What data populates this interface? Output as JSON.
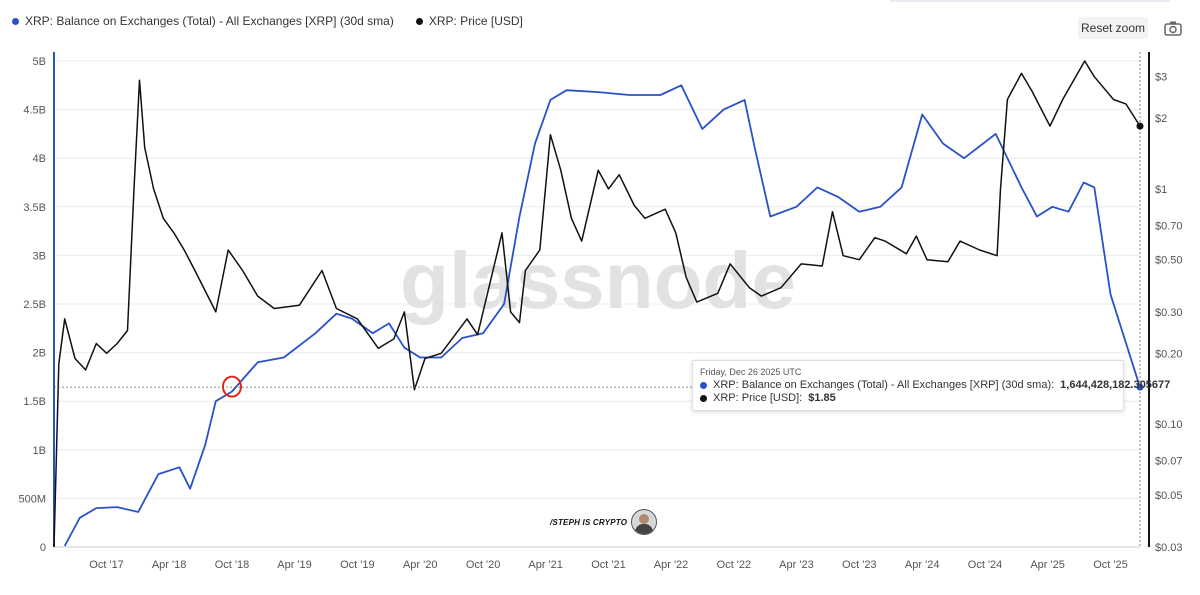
{
  "legend": {
    "balance_label": "XRP: Balance on Exchanges (Total) - All Exchanges [XRP] (30d sma)",
    "price_label": "XRP: Price [USD]"
  },
  "colors": {
    "balance": "#2952c8",
    "price": "#111111",
    "highlight_circle": "#e0261b",
    "watermark": "#e2e2e2"
  },
  "toolbar": {
    "reset_zoom_label": "Reset zoom",
    "camera_icon": "camera-icon"
  },
  "watermark": "glassnode",
  "credit": {
    "text": "/STEPH IS CRYPTO"
  },
  "tooltip": {
    "date": "Friday, Dec 26 2025 UTC",
    "balance_label": "XRP: Balance on Exchanges (Total) - All Exchanges [XRP] (30d sma):",
    "balance_value": "1,644,428,182.305677",
    "price_label": "XRP: Price [USD]:",
    "price_value": "$1.85"
  },
  "chart_data": {
    "type": "line",
    "x_axis": {
      "type": "date",
      "tick_labels": [
        "Oct '17",
        "Apr '18",
        "Oct '18",
        "Apr '19",
        "Oct '19",
        "Apr '20",
        "Oct '20",
        "Apr '21",
        "Oct '21",
        "Apr '22",
        "Oct '22",
        "Apr '23",
        "Oct '23",
        "Apr '24",
        "Oct '24",
        "Apr '25",
        "Oct '25"
      ],
      "range": [
        "2017-05-01",
        "2025-12-26"
      ]
    },
    "y_axis_left": {
      "series": "XRP: Balance on Exchanges (Total) - All Exchanges [XRP] (30d sma)",
      "tick_labels": [
        "0",
        "500M",
        "1B",
        "1.5B",
        "2B",
        "2.5B",
        "3B",
        "3.5B",
        "4B",
        "4.5B",
        "5B"
      ],
      "range": [
        0,
        5000000000
      ]
    },
    "y_axis_right": {
      "series": "XRP: Price [USD]",
      "scale": "log",
      "tick_labels": [
        "$0.03",
        "$0.05",
        "$0.07",
        "$0.10",
        "$0.20",
        "$0.30",
        "$0.50",
        "$0.70",
        "$1",
        "$2",
        "$3"
      ],
      "range": [
        0.03,
        3.5
      ]
    },
    "grid": {
      "horizontal": true,
      "vertical": false
    },
    "legend_position": "top-left",
    "series": [
      {
        "name": "XRP: Balance on Exchanges (Total) - All Exchanges [XRP] (30d sma)",
        "axis": "left",
        "points": [
          [
            "2017-06-01",
            10000000
          ],
          [
            "2017-07-15",
            300000000
          ],
          [
            "2017-09-01",
            400000000
          ],
          [
            "2017-11-01",
            410000000
          ],
          [
            "2018-01-01",
            360000000
          ],
          [
            "2018-03-01",
            750000000
          ],
          [
            "2018-05-01",
            820000000
          ],
          [
            "2018-06-01",
            600000000
          ],
          [
            "2018-07-15",
            1050000000
          ],
          [
            "2018-08-15",
            1500000000
          ],
          [
            "2018-10-01",
            1600000000
          ],
          [
            "2018-11-15",
            1780000000
          ],
          [
            "2018-12-15",
            1900000000
          ],
          [
            "2019-03-01",
            1950000000
          ],
          [
            "2019-06-01",
            2200000000
          ],
          [
            "2019-08-01",
            2400000000
          ],
          [
            "2019-09-15",
            2350000000
          ],
          [
            "2019-11-15",
            2200000000
          ],
          [
            "2020-01-01",
            2300000000
          ],
          [
            "2020-02-15",
            2050000000
          ],
          [
            "2020-04-01",
            1950000000
          ],
          [
            "2020-06-01",
            1950000000
          ],
          [
            "2020-08-01",
            2150000000
          ],
          [
            "2020-10-01",
            2200000000
          ],
          [
            "2020-12-01",
            2500000000
          ],
          [
            "2021-01-15",
            3400000000
          ],
          [
            "2021-03-01",
            4150000000
          ],
          [
            "2021-04-15",
            4600000000
          ],
          [
            "2021-06-01",
            4700000000
          ],
          [
            "2021-09-01",
            4680000000
          ],
          [
            "2021-12-01",
            4650000000
          ],
          [
            "2022-03-01",
            4650000000
          ],
          [
            "2022-05-01",
            4750000000
          ],
          [
            "2022-07-01",
            4300000000
          ],
          [
            "2022-09-01",
            4500000000
          ],
          [
            "2022-11-01",
            4600000000
          ],
          [
            "2022-12-01",
            4100000000
          ],
          [
            "2023-01-15",
            3400000000
          ],
          [
            "2023-04-01",
            3500000000
          ],
          [
            "2023-06-01",
            3700000000
          ],
          [
            "2023-08-01",
            3600000000
          ],
          [
            "2023-10-01",
            3450000000
          ],
          [
            "2023-12-01",
            3500000000
          ],
          [
            "2024-02-01",
            3700000000
          ],
          [
            "2024-04-01",
            4450000000
          ],
          [
            "2024-06-01",
            4150000000
          ],
          [
            "2024-08-01",
            4000000000
          ],
          [
            "2024-11-01",
            4250000000
          ],
          [
            "2025-01-15",
            3700000000
          ],
          [
            "2025-03-01",
            3400000000
          ],
          [
            "2025-04-15",
            3500000000
          ],
          [
            "2025-06-01",
            3450000000
          ],
          [
            "2025-07-15",
            3750000000
          ],
          [
            "2025-08-15",
            3700000000
          ],
          [
            "2025-10-01",
            2600000000
          ],
          [
            "2025-11-15",
            2100000000
          ],
          [
            "2025-12-26",
            1644428182.305677
          ]
        ]
      },
      {
        "name": "XRP: Price [USD]",
        "axis": "right",
        "points": [
          [
            "2017-05-01",
            0.03
          ],
          [
            "2017-05-15",
            0.18
          ],
          [
            "2017-06-01",
            0.28
          ],
          [
            "2017-07-01",
            0.19
          ],
          [
            "2017-08-01",
            0.17
          ],
          [
            "2017-09-01",
            0.22
          ],
          [
            "2017-10-01",
            0.2
          ],
          [
            "2017-11-01",
            0.22
          ],
          [
            "2017-12-01",
            0.25
          ],
          [
            "2017-12-20",
            1.0
          ],
          [
            "2018-01-05",
            2.9
          ],
          [
            "2018-01-20",
            1.5
          ],
          [
            "2018-02-15",
            1.0
          ],
          [
            "2018-03-15",
            0.75
          ],
          [
            "2018-04-15",
            0.65
          ],
          [
            "2018-05-15",
            0.55
          ],
          [
            "2018-06-15",
            0.45
          ],
          [
            "2018-08-15",
            0.3
          ],
          [
            "2018-09-20",
            0.55
          ],
          [
            "2018-11-01",
            0.45
          ],
          [
            "2018-12-15",
            0.35
          ],
          [
            "2019-02-01",
            0.31
          ],
          [
            "2019-04-15",
            0.32
          ],
          [
            "2019-06-20",
            0.45
          ],
          [
            "2019-08-01",
            0.31
          ],
          [
            "2019-10-01",
            0.28
          ],
          [
            "2019-12-01",
            0.21
          ],
          [
            "2020-01-15",
            0.23
          ],
          [
            "2020-02-15",
            0.3
          ],
          [
            "2020-03-15",
            0.14
          ],
          [
            "2020-04-15",
            0.19
          ],
          [
            "2020-06-01",
            0.2
          ],
          [
            "2020-08-15",
            0.28
          ],
          [
            "2020-09-15",
            0.24
          ],
          [
            "2020-11-25",
            0.65
          ],
          [
            "2020-12-20",
            0.3
          ],
          [
            "2021-01-15",
            0.27
          ],
          [
            "2021-02-01",
            0.45
          ],
          [
            "2021-03-15",
            0.55
          ],
          [
            "2021-04-15",
            1.7
          ],
          [
            "2021-05-15",
            1.2
          ],
          [
            "2021-06-15",
            0.75
          ],
          [
            "2021-07-15",
            0.6
          ],
          [
            "2021-09-01",
            1.2
          ],
          [
            "2021-10-01",
            1.0
          ],
          [
            "2021-11-01",
            1.15
          ],
          [
            "2021-12-15",
            0.85
          ],
          [
            "2022-01-15",
            0.75
          ],
          [
            "2022-03-15",
            0.82
          ],
          [
            "2022-04-15",
            0.65
          ],
          [
            "2022-05-15",
            0.42
          ],
          [
            "2022-06-15",
            0.33
          ],
          [
            "2022-08-15",
            0.36
          ],
          [
            "2022-09-20",
            0.48
          ],
          [
            "2022-11-15",
            0.38
          ],
          [
            "2022-12-20",
            0.35
          ],
          [
            "2023-02-15",
            0.38
          ],
          [
            "2023-04-15",
            0.48
          ],
          [
            "2023-06-15",
            0.47
          ],
          [
            "2023-07-15",
            0.8
          ],
          [
            "2023-08-15",
            0.52
          ],
          [
            "2023-10-01",
            0.5
          ],
          [
            "2023-11-15",
            0.62
          ],
          [
            "2023-12-15",
            0.6
          ],
          [
            "2024-02-15",
            0.53
          ],
          [
            "2024-03-15",
            0.63
          ],
          [
            "2024-04-15",
            0.5
          ],
          [
            "2024-06-15",
            0.49
          ],
          [
            "2024-07-20",
            0.6
          ],
          [
            "2024-09-15",
            0.55
          ],
          [
            "2024-11-05",
            0.52
          ],
          [
            "2024-11-15",
            1.0
          ],
          [
            "2024-12-05",
            2.4
          ],
          [
            "2025-01-15",
            3.1
          ],
          [
            "2025-02-15",
            2.6
          ],
          [
            "2025-04-08",
            1.85
          ],
          [
            "2025-05-15",
            2.4
          ],
          [
            "2025-07-18",
            3.5
          ],
          [
            "2025-08-15",
            3.0
          ],
          [
            "2025-10-10",
            2.4
          ],
          [
            "2025-11-15",
            2.3
          ],
          [
            "2025-12-26",
            1.85
          ]
        ]
      }
    ],
    "annotations": [
      {
        "type": "circle",
        "date": "2018-10-01",
        "value": 1650000000
      },
      {
        "type": "crosshair",
        "date": "2025-12-26",
        "value": 1644428182.305677
      }
    ]
  }
}
